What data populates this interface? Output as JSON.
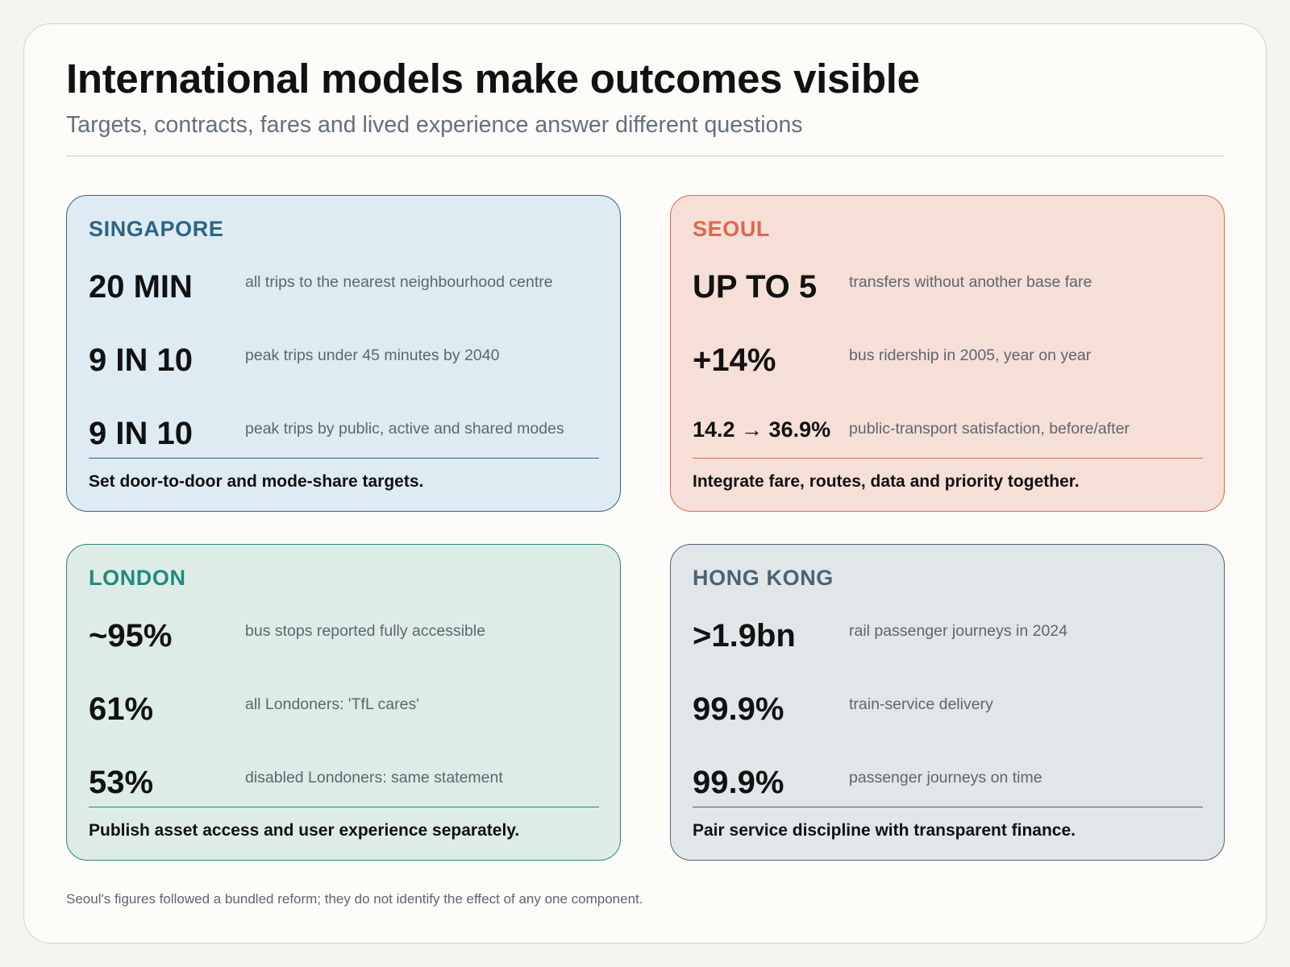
{
  "header": {
    "title": "International models make outcomes visible",
    "subtitle": "Targets, contracts, fares and lived experience answer different questions"
  },
  "cards": [
    {
      "name": "SINGAPORE",
      "accent": "#2c6584",
      "background": "#dfebf3",
      "metrics": [
        {
          "value": "20 MIN",
          "label": "all trips to the nearest neighbourhood centre"
        },
        {
          "value": "9 IN 10",
          "label": "peak trips under 45 minutes by 2040"
        },
        {
          "value": "9 IN 10",
          "label": "peak trips by public, active and shared modes"
        }
      ],
      "takeaway": "Set door-to-door and mode-share targets."
    },
    {
      "name": "SEOUL",
      "accent": "#e0664d",
      "background": "#f6dfd7",
      "metrics": [
        {
          "value": "UP TO 5",
          "label": "transfers without another base fare"
        },
        {
          "value": "+14%",
          "label": "bus ridership in 2005, year on year"
        },
        {
          "value": "14.2 → 36.9%",
          "label": "public-transport satisfaction, before/after"
        }
      ],
      "takeaway": "Integrate fare, routes, data and priority together."
    },
    {
      "name": "LONDON",
      "accent": "#23897d",
      "background": "#ddece7",
      "metrics": [
        {
          "value": "~95%",
          "label": "bus stops reported fully accessible"
        },
        {
          "value": "61%",
          "label": "all Londoners: 'TfL cares'"
        },
        {
          "value": "53%",
          "label": "disabled Londoners: same statement"
        }
      ],
      "takeaway": "Publish asset access and user experience separately."
    },
    {
      "name": "HONG KONG",
      "accent": "#4c6275",
      "background": "#e1e6e9",
      "metrics": [
        {
          "value": ">1.9bn",
          "label": "rail passenger journeys in 2024"
        },
        {
          "value": "99.9%",
          "label": "train-service delivery"
        },
        {
          "value": "99.9%",
          "label": "passenger journeys on time"
        }
      ],
      "takeaway": "Pair service discipline with transparent finance."
    }
  ],
  "footnote": "Seoul's figures followed a bundled reform; they do not identify the effect of any one component."
}
